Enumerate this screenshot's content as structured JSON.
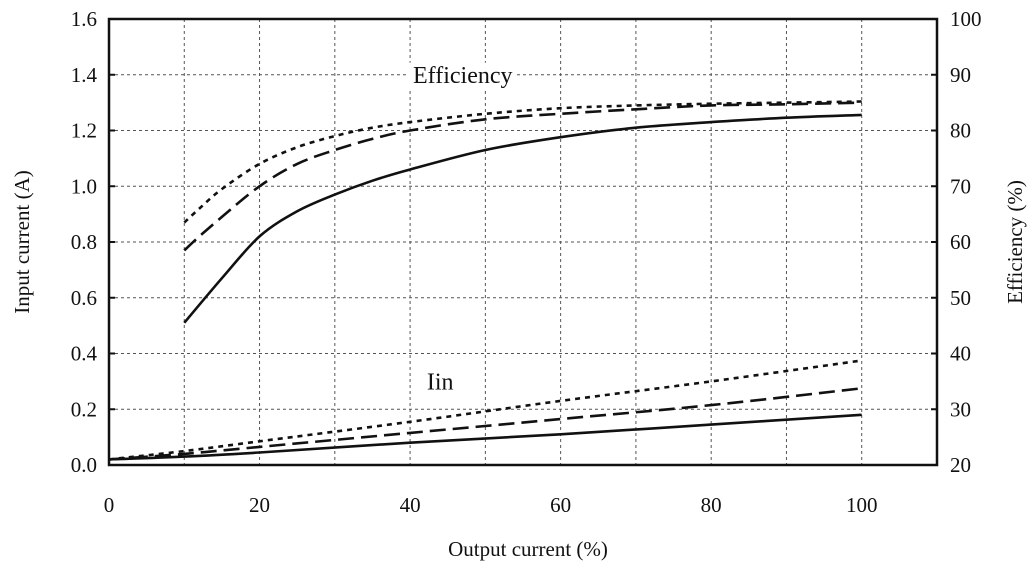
{
  "chart_data": {
    "type": "line",
    "xlabel": "Output current (%)",
    "ylabel_left": "Input current (A)",
    "ylabel_right": "Efficiency (%)",
    "xlim": [
      0,
      110
    ],
    "ylim_left": [
      0,
      1.6
    ],
    "ylim_right": [
      20,
      100
    ],
    "x_ticks": [
      0,
      20,
      40,
      60,
      80,
      100
    ],
    "x_tick_labels": [
      "0",
      "20",
      "40",
      "60",
      "80",
      "100"
    ],
    "y_left_ticks": [
      0,
      0.2,
      0.4,
      0.6,
      0.8,
      1.0,
      1.2,
      1.4,
      1.6
    ],
    "y_left_tick_labels": [
      "0.0",
      "0.2",
      "0.4",
      "0.6",
      "0.8",
      "1.0",
      "1.2",
      "1.4",
      "1.6"
    ],
    "y_right_ticks": [
      20,
      30,
      40,
      50,
      60,
      70,
      80,
      90,
      100
    ],
    "y_right_tick_labels": [
      "20",
      "30",
      "40",
      "50",
      "60",
      "70",
      "80",
      "90",
      "100"
    ],
    "grid": true,
    "annotations": [
      {
        "text": "Efficiency",
        "x": 47,
        "y": 1.4
      },
      {
        "text": "Iin",
        "x": 44,
        "y": 0.3
      }
    ],
    "series": [
      {
        "group": "Efficiency",
        "axis": "right",
        "style": "solid",
        "x": [
          10,
          15,
          20,
          25,
          30,
          35,
          40,
          50,
          60,
          70,
          80,
          90,
          100
        ],
        "y": [
          45.5,
          53.5,
          61,
          65.5,
          68.5,
          71,
          73,
          76.5,
          78.8,
          80.5,
          81.5,
          82.3,
          82.8
        ]
      },
      {
        "group": "Efficiency",
        "axis": "right",
        "style": "dashed",
        "x": [
          10,
          12,
          15,
          20,
          25,
          30,
          35,
          40,
          50,
          60,
          70,
          80,
          90,
          100
        ],
        "y": [
          58.5,
          61,
          64.5,
          70,
          74,
          76.5,
          78.5,
          80,
          82,
          83,
          83.8,
          84.5,
          84.7,
          85
        ]
      },
      {
        "group": "Efficiency",
        "axis": "right",
        "style": "dotted",
        "x": [
          10,
          12,
          15,
          20,
          25,
          30,
          35,
          40,
          50,
          60,
          70,
          80,
          90,
          100
        ],
        "y": [
          63.5,
          66,
          69.5,
          74,
          77,
          79,
          80.5,
          81.5,
          83,
          84,
          84.5,
          84.8,
          85,
          85.2
        ]
      },
      {
        "group": "Iin",
        "axis": "left",
        "style": "solid",
        "x": [
          0,
          10,
          20,
          40,
          60,
          80,
          100
        ],
        "y": [
          0.02,
          0.03,
          0.045,
          0.08,
          0.11,
          0.145,
          0.18
        ]
      },
      {
        "group": "Iin",
        "axis": "left",
        "style": "dashed",
        "x": [
          0,
          10,
          20,
          40,
          60,
          80,
          100
        ],
        "y": [
          0.02,
          0.04,
          0.065,
          0.115,
          0.165,
          0.215,
          0.275
        ]
      },
      {
        "group": "Iin",
        "axis": "left",
        "style": "dotted",
        "x": [
          0,
          10,
          20,
          40,
          60,
          80,
          100
        ],
        "y": [
          0.02,
          0.05,
          0.085,
          0.155,
          0.23,
          0.3,
          0.375
        ]
      }
    ]
  }
}
